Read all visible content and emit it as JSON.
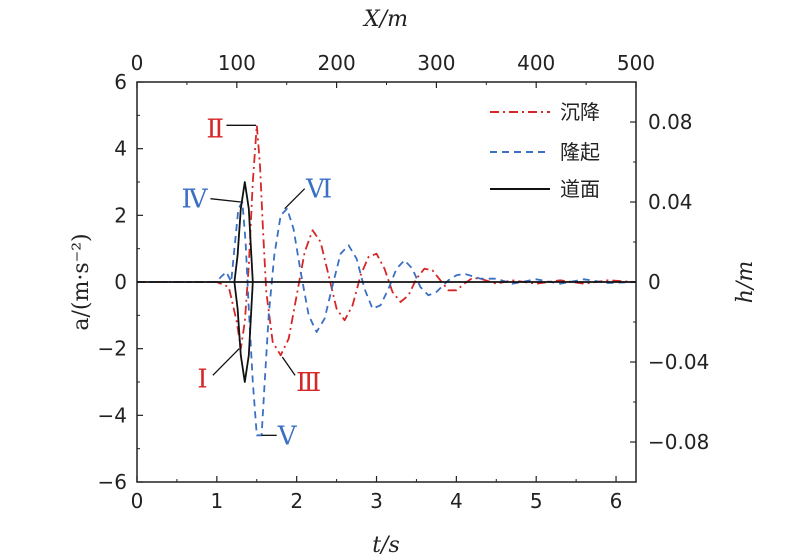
{
  "chart_data": {
    "type": "line",
    "title": "",
    "xlabel_main": "t/s",
    "xlabel_top": "X/m",
    "ylabel_left": "a/(m·s⁻²)",
    "ylabel_right": "h/m",
    "xlim": [
      0,
      6.25
    ],
    "ylim": [
      -6,
      6
    ],
    "xlim_top": [
      0,
      500
    ],
    "ylim_right": [
      -0.1,
      0.1
    ],
    "x_ticks": [
      "0",
      "1",
      "2",
      "3",
      "4",
      "5",
      "6"
    ],
    "x_tick_values": [
      0,
      1,
      2,
      3,
      4,
      5,
      6
    ],
    "y_ticks": [
      "−6",
      "−4",
      "−2",
      "0",
      "2",
      "4",
      "6"
    ],
    "y_tick_values": [
      -6,
      -4,
      -2,
      0,
      2,
      4,
      6
    ],
    "top_ticks": [
      "0",
      "100",
      "200",
      "300",
      "400",
      "500"
    ],
    "top_tick_values": [
      0,
      100,
      200,
      300,
      400,
      500
    ],
    "right_ticks": [
      "0.08",
      "0.04",
      "0",
      "−0.04",
      "−0.08"
    ],
    "right_tick_values": [
      0.08,
      0.04,
      0,
      -0.04,
      -0.08
    ],
    "grid": false,
    "legend_position": "top-right",
    "series": [
      {
        "name": "沉降",
        "color": "#d62728",
        "dash": "dashdot",
        "points": [
          [
            0,
            0
          ],
          [
            1.0,
            0
          ],
          [
            1.15,
            -0.15
          ],
          [
            1.25,
            -1.2
          ],
          [
            1.3,
            -2.0
          ],
          [
            1.35,
            -1.2
          ],
          [
            1.4,
            0.5
          ],
          [
            1.45,
            3.0
          ],
          [
            1.5,
            4.7
          ],
          [
            1.54,
            3.5
          ],
          [
            1.58,
            1.5
          ],
          [
            1.62,
            -0.3
          ],
          [
            1.7,
            -1.8
          ],
          [
            1.8,
            -2.2
          ],
          [
            1.9,
            -1.7
          ],
          [
            2.0,
            -0.4
          ],
          [
            2.1,
            0.9
          ],
          [
            2.2,
            1.55
          ],
          [
            2.3,
            1.2
          ],
          [
            2.4,
            0.2
          ],
          [
            2.5,
            -0.8
          ],
          [
            2.6,
            -1.15
          ],
          [
            2.7,
            -0.7
          ],
          [
            2.8,
            0.2
          ],
          [
            2.9,
            0.75
          ],
          [
            3.0,
            0.85
          ],
          [
            3.1,
            0.4
          ],
          [
            3.2,
            -0.3
          ],
          [
            3.3,
            -0.6
          ],
          [
            3.4,
            -0.4
          ],
          [
            3.5,
            0.1
          ],
          [
            3.6,
            0.4
          ],
          [
            3.7,
            0.35
          ],
          [
            3.8,
            0.05
          ],
          [
            3.9,
            -0.25
          ],
          [
            4.0,
            -0.25
          ],
          [
            4.1,
            -0.05
          ],
          [
            4.2,
            0.12
          ],
          [
            4.3,
            0.1
          ],
          [
            4.5,
            -0.05
          ],
          [
            4.7,
            0.05
          ],
          [
            5.0,
            -0.05
          ],
          [
            5.3,
            0.05
          ],
          [
            5.6,
            -0.05
          ],
          [
            5.9,
            0.05
          ],
          [
            6.25,
            0
          ]
        ]
      },
      {
        "name": "隆起",
        "color": "#3a6fc4",
        "dash": "dashed",
        "points": [
          [
            0,
            0
          ],
          [
            1.0,
            0
          ],
          [
            1.05,
            0.15
          ],
          [
            1.12,
            0.3
          ],
          [
            1.18,
            0.0
          ],
          [
            1.22,
            1.0
          ],
          [
            1.27,
            2.2
          ],
          [
            1.32,
            2.4
          ],
          [
            1.36,
            1.2
          ],
          [
            1.4,
            -0.8
          ],
          [
            1.45,
            -3.0
          ],
          [
            1.5,
            -4.6
          ],
          [
            1.56,
            -4.6
          ],
          [
            1.6,
            -3.0
          ],
          [
            1.65,
            -1.0
          ],
          [
            1.72,
            0.8
          ],
          [
            1.8,
            2.0
          ],
          [
            1.88,
            2.2
          ],
          [
            1.96,
            1.6
          ],
          [
            2.05,
            0.3
          ],
          [
            2.15,
            -1.0
          ],
          [
            2.25,
            -1.5
          ],
          [
            2.35,
            -1.1
          ],
          [
            2.45,
            -0.1
          ],
          [
            2.55,
            0.85
          ],
          [
            2.65,
            1.1
          ],
          [
            2.75,
            0.7
          ],
          [
            2.85,
            -0.2
          ],
          [
            2.95,
            -0.8
          ],
          [
            3.05,
            -0.7
          ],
          [
            3.15,
            -0.2
          ],
          [
            3.25,
            0.4
          ],
          [
            3.35,
            0.65
          ],
          [
            3.45,
            0.4
          ],
          [
            3.55,
            -0.15
          ],
          [
            3.65,
            -0.4
          ],
          [
            3.75,
            -0.3
          ],
          [
            3.9,
            0.05
          ],
          [
            4.0,
            0.2
          ],
          [
            4.1,
            0.25
          ],
          [
            4.3,
            0.1
          ],
          [
            4.5,
            0.1
          ],
          [
            4.7,
            -0.05
          ],
          [
            5.0,
            0.08
          ],
          [
            5.3,
            -0.05
          ],
          [
            5.6,
            0.08
          ],
          [
            5.9,
            -0.03
          ],
          [
            6.25,
            0
          ]
        ]
      },
      {
        "name": "道面",
        "color": "#111111",
        "dash": "solid",
        "points": [
          [
            0,
            0
          ],
          [
            1.22,
            0
          ],
          [
            1.26,
            0.8
          ],
          [
            1.3,
            2.2
          ],
          [
            1.35,
            3.0
          ],
          [
            1.4,
            2.2
          ],
          [
            1.45,
            0.0
          ],
          [
            1.4,
            -2.2
          ],
          [
            1.35,
            -3.0
          ],
          [
            1.3,
            -2.2
          ],
          [
            1.26,
            -0.8
          ],
          [
            1.22,
            0
          ],
          [
            6.25,
            0
          ]
        ]
      }
    ],
    "annotations": [
      {
        "text": "Ⅰ",
        "color": "#d62728"
      },
      {
        "text": "Ⅱ",
        "color": "#d62728"
      },
      {
        "text": "Ⅲ",
        "color": "#d62728"
      },
      {
        "text": "Ⅳ",
        "color": "#3a6fc4"
      },
      {
        "text": "Ⅴ",
        "color": "#3a6fc4"
      },
      {
        "text": "Ⅵ",
        "color": "#3a6fc4"
      }
    ]
  }
}
